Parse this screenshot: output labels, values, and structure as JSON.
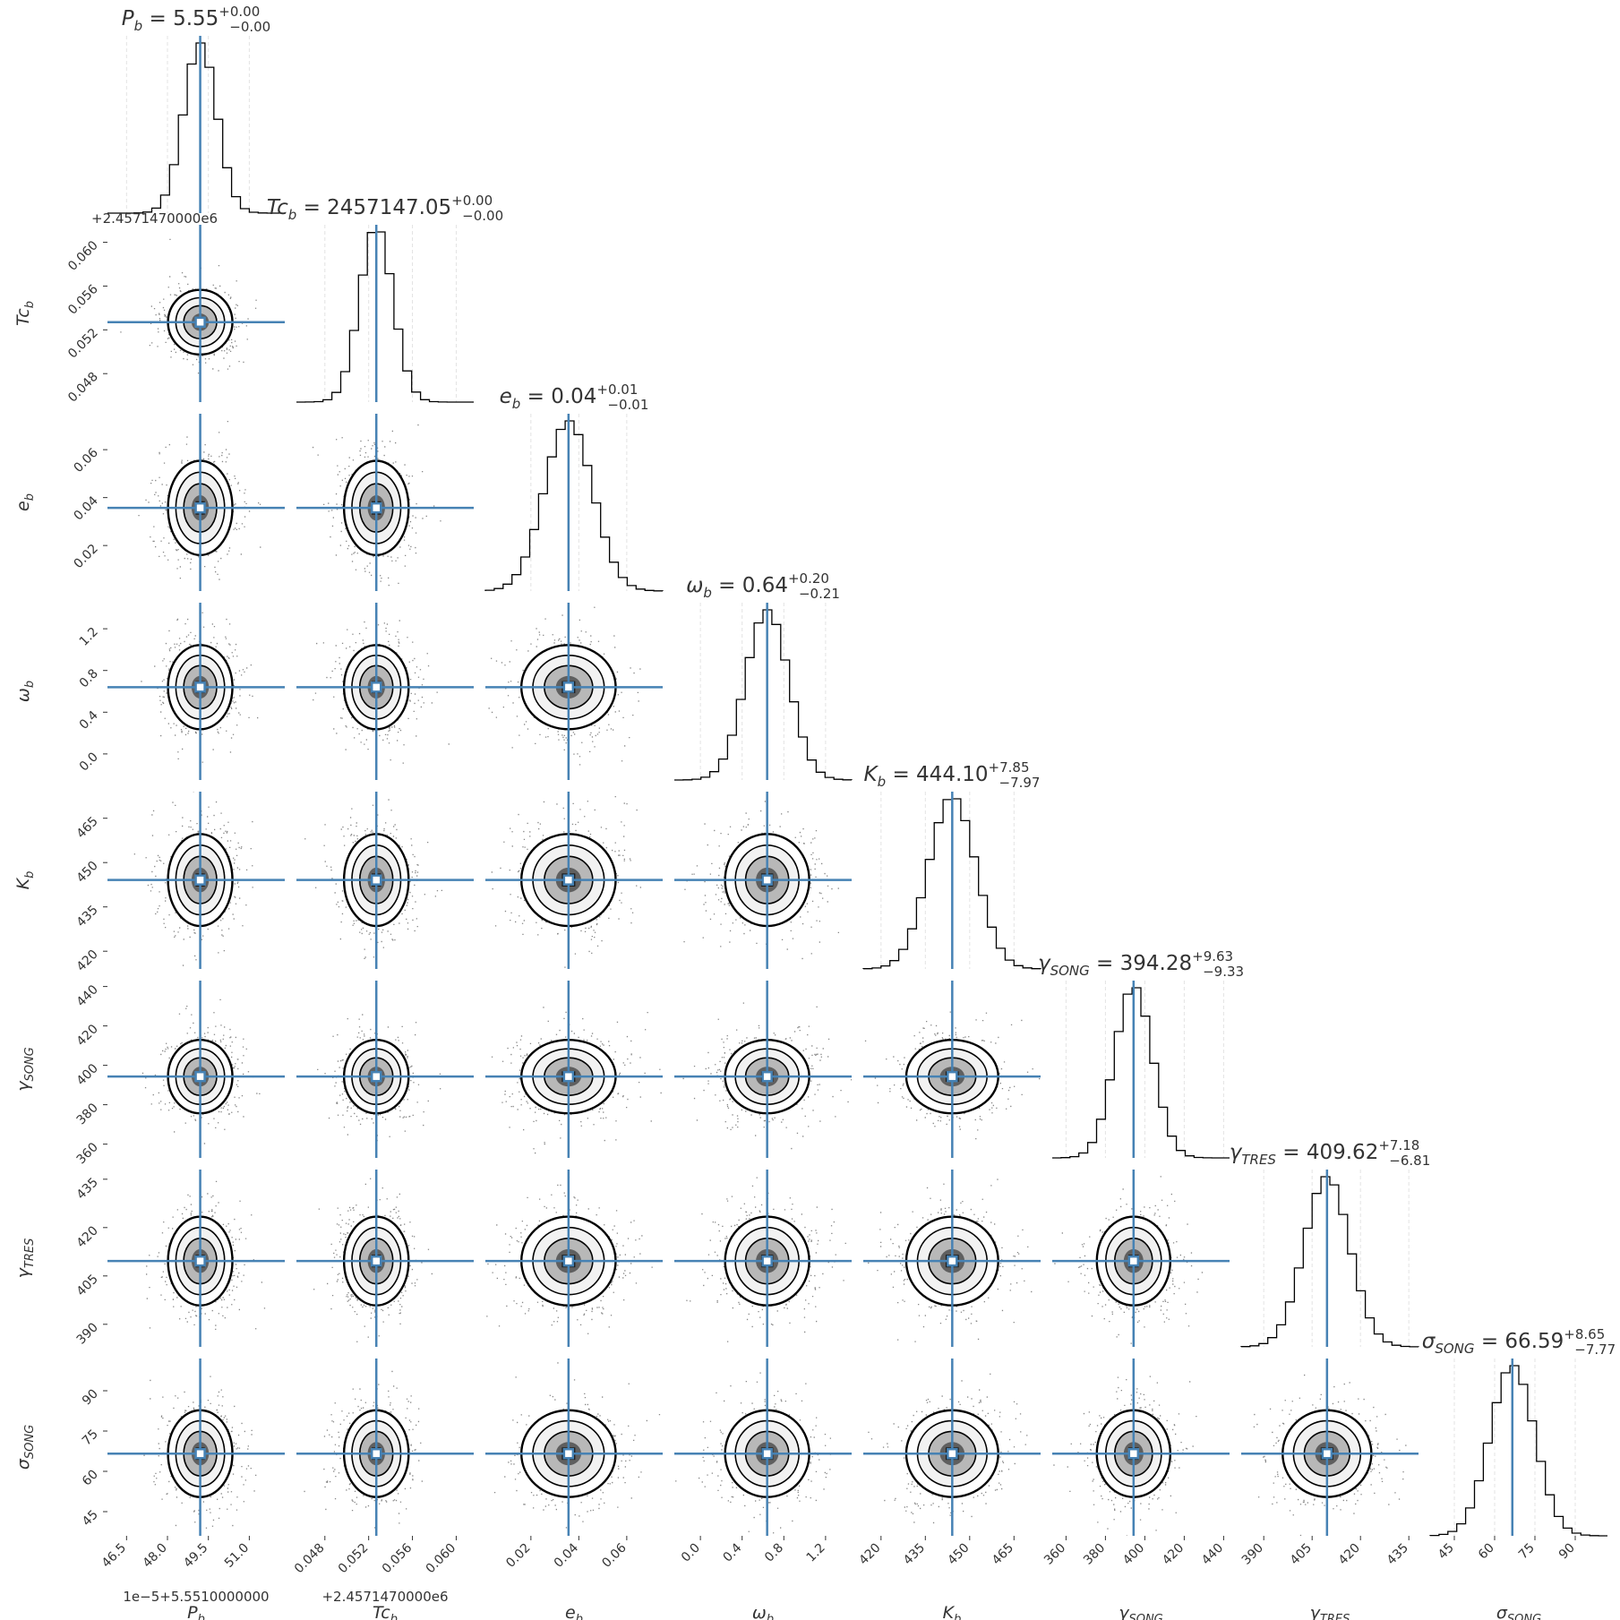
{
  "chart_data": {
    "type": "corner",
    "parameters": [
      {
        "key": "P_b",
        "label": "P_b",
        "base": "P",
        "sub": "b",
        "title_value": "5.55",
        "err_plus": "+0.00",
        "err_minus": "−0.00",
        "range": [
          45.8,
          52.3
        ],
        "ticks": [
          46.5,
          48.0,
          49.5,
          51.0
        ],
        "tick_labels": [
          "46.5",
          "48.0",
          "49.5",
          "51.0"
        ],
        "offset": "1e−5+5.5510000000",
        "axis_offset": "+2.4571470000e6",
        "truth": 49.2,
        "minus": 0.6,
        "plus": 0.6
      },
      {
        "key": "Tc_b",
        "label": "Tc_b",
        "base": "Tc",
        "sub": "b",
        "title_value": "2457147.05",
        "err_plus": "+0.00",
        "err_minus": "−0.00",
        "range": [
          0.0454,
          0.0616
        ],
        "ticks": [
          0.048,
          0.052,
          0.056,
          0.06
        ],
        "tick_labels": [
          "0.048",
          "0.052",
          "0.056",
          "0.060"
        ],
        "offset": "+2.4571470000e6",
        "truth": 0.0527,
        "minus": 0.0015,
        "plus": 0.0015
      },
      {
        "key": "e_b",
        "label": "e_b",
        "base": "e",
        "sub": "b",
        "title_value": "0.04",
        "err_plus": "+0.01",
        "err_minus": "−0.01",
        "range": [
          0.001,
          0.075
        ],
        "ticks": [
          0.02,
          0.04,
          0.06
        ],
        "tick_labels": [
          "0.02",
          "0.04",
          "0.06"
        ],
        "truth": 0.0357,
        "minus": 0.01,
        "plus": 0.01
      },
      {
        "key": "omega_b",
        "label": "ω_b",
        "base": "ω",
        "sub": "b",
        "title_value": "0.64",
        "err_plus": "+0.20",
        "err_minus": "−0.21",
        "range": [
          -0.25,
          1.45
        ],
        "ticks": [
          0.0,
          0.4,
          0.8,
          1.2
        ],
        "tick_labels": [
          "0.0",
          "0.4",
          "0.8",
          "1.2"
        ],
        "truth": 0.64,
        "minus": 0.21,
        "plus": 0.2
      },
      {
        "key": "K_b",
        "label": "K_b",
        "base": "K",
        "sub": "b",
        "title_value": "444.10",
        "err_plus": "+7.85",
        "err_minus": "−7.97",
        "range": [
          414,
          474
        ],
        "ticks": [
          420,
          435,
          450,
          465
        ],
        "tick_labels": [
          "420",
          "435",
          "450",
          "465"
        ],
        "truth": 444.1,
        "minus": 7.97,
        "plus": 7.85
      },
      {
        "key": "gamma_song",
        "label": "γ_SONG",
        "base": "γ",
        "sub": "SONG",
        "title_value": "394.28",
        "err_plus": "+9.63",
        "err_minus": "−9.33",
        "range": [
          353,
          443
        ],
        "ticks": [
          360,
          380,
          400,
          420,
          440
        ],
        "tick_labels": [
          "360",
          "380",
          "400",
          "420",
          "440"
        ],
        "truth": 394.28,
        "minus": 9.33,
        "plus": 9.63
      },
      {
        "key": "gamma_tres",
        "label": "γ_TRES",
        "base": "γ",
        "sub": "TRES",
        "title_value": "409.62",
        "err_plus": "+7.18",
        "err_minus": "−6.81",
        "range": [
          383,
          438
        ],
        "ticks": [
          390,
          405,
          420,
          435
        ],
        "tick_labels": [
          "390",
          "405",
          "420",
          "435"
        ],
        "truth": 409.62,
        "minus": 6.81,
        "plus": 7.18
      },
      {
        "key": "sigma_song",
        "label": "σ_SONG",
        "base": "σ",
        "sub": "SONG",
        "title_value": "66.59",
        "err_plus": "+8.65",
        "err_minus": "−7.77",
        "range": [
          36,
          102
        ],
        "ticks": [
          45,
          60,
          75,
          90
        ],
        "tick_labels": [
          "45",
          "60",
          "75",
          "90"
        ],
        "truth": 66.59,
        "minus": 7.77,
        "plus": 8.65
      }
    ],
    "colors": {
      "truth": "#4682b4",
      "hist": "#000000",
      "quantile": "#bbbbbb",
      "text": "#333333",
      "contour": "#000000"
    }
  }
}
